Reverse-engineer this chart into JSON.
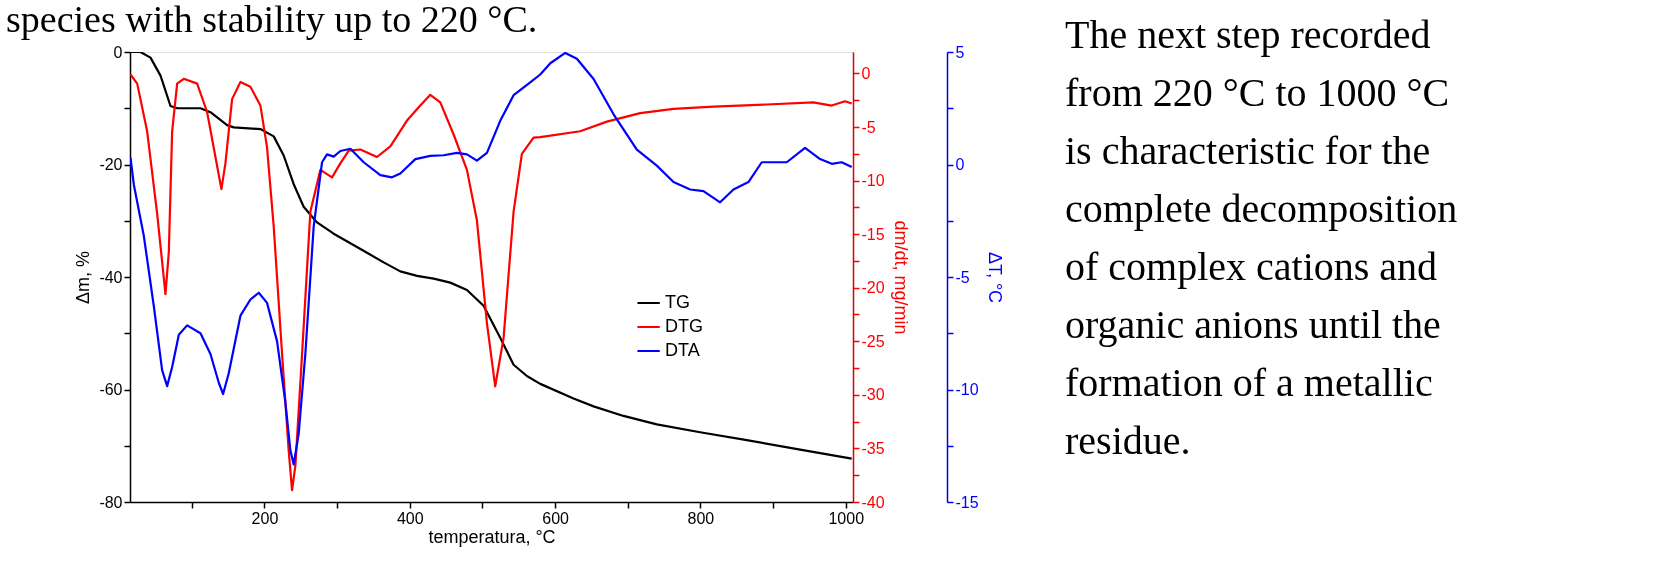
{
  "chart_data": {
    "type": "line",
    "xlabel": "temperatura, °C",
    "ylabel": "Δm, %",
    "y2label": "dm/dt, mg/min",
    "y3label": "ΔT, °C",
    "xlim": [
      15,
      1010
    ],
    "xticks": [
      {
        "value": 100,
        "label": null
      },
      200,
      {
        "value": 300,
        "label": null
      },
      400,
      {
        "value": 500,
        "label": null
      },
      600,
      {
        "value": 700,
        "label": null
      },
      800,
      {
        "value": 900,
        "label": null
      },
      1000
    ],
    "ylim": [
      -80,
      0
    ],
    "yticks": [
      -80,
      {
        "value": -70,
        "label": null
      },
      -60,
      {
        "value": -50,
        "label": null
      },
      -40,
      {
        "value": -30,
        "label": null
      },
      -20,
      {
        "value": -10,
        "label": null
      },
      0
    ],
    "y2lim": [
      -40,
      2
    ],
    "y2ticks": [
      -40,
      {
        "value": -37.5,
        "label": null
      },
      -35,
      {
        "value": -32.5,
        "label": null
      },
      -30,
      {
        "value": -27.5,
        "label": null
      },
      -25,
      {
        "value": -22.5,
        "label": null
      },
      -20,
      {
        "value": -17.5,
        "label": null
      },
      -15,
      {
        "value": -12.5,
        "label": null
      },
      -10,
      {
        "value": -7.5,
        "label": null
      },
      -5,
      {
        "value": -2.5,
        "label": null
      },
      0
    ],
    "y3lim": [
      -15,
      5
    ],
    "y3ticks": [
      -15,
      {
        "value": -12.5,
        "label": null
      },
      -10,
      {
        "value": -7.5,
        "label": null
      },
      -5,
      {
        "value": -2.5,
        "label": null
      },
      0,
      {
        "value": 2.5,
        "label": null
      },
      5
    ],
    "legend": "center right",
    "annotations": [
      "species with stability up to 220 °C.",
      "The next step recorded\nfrom 220 °C to 1000 °C\nis characteristic for the\ncomplete decomposition\nof complex cations and\norganic anions until the\nformation of a metallic\nresidue."
    ],
    "series": [
      {
        "name": "TG",
        "color": "#000000",
        "axis": "y",
        "x": [
          15.7,
          29.4,
          43.2,
          57,
          70.7,
          79.9,
          112,
          125.7,
          148.6,
          157.8,
          194.5,
          212.8,
          226.5,
          240.3,
          254,
          272.4,
          295.3,
          318.3,
          341.2,
          364.1,
          387,
          410,
          432.9,
          455.8,
          478.7,
          501.6,
          524.5,
          542.9,
          561.2,
          579.6,
          625.4,
          653,
          694.2,
          740,
          799.6,
          863.8,
          937.2,
          1008.2
        ],
        "values": [
          0,
          0,
          -1.0,
          -4.2,
          -9.6,
          -10.0,
          -10.0,
          -10.7,
          -13.0,
          -13.4,
          -13.7,
          -15.0,
          -18.4,
          -23.5,
          -27.5,
          -30.3,
          -32.3,
          -34.0,
          -35.7,
          -37.4,
          -39.0,
          -39.8,
          -40.3,
          -41.0,
          -42.3,
          -45.1,
          -50.8,
          -55.6,
          -57.6,
          -59.0,
          -61.6,
          -63.0,
          -64.7,
          -66.2,
          -67.6,
          -69.0,
          -70.7,
          -72.3
        ]
      },
      {
        "name": "DTG",
        "color": "#ff0000",
        "axis": "y2",
        "x": [
          15.7,
          24.9,
          38.6,
          52.4,
          63.8,
          68.4,
          73,
          79.9,
          89,
          107.4,
          121.1,
          132.6,
          140.8,
          146.3,
          155.5,
          167,
          180.7,
          194.5,
          203.6,
          212.8,
          224.3,
          233.4,
          238,
          242.6,
          251.8,
          263.2,
          277,
          293,
          304.5,
          316,
          332,
          354.9,
          373.3,
          396.2,
          414.5,
          428.3,
          442,
          460.4,
          478.7,
          492.4,
          506.2,
          517.6,
          529.1,
          542.9,
          554.3,
          570.4,
          579.6,
          634.6,
          671.3,
          717.1,
          763,
          818,
          891.3,
          955.5,
          980.7,
          999,
          1008.2
        ],
        "values": [
          -0.1,
          -0.95,
          -5.4,
          -13.1,
          -20.6,
          -16.7,
          -5.4,
          -0.95,
          -0.5,
          -0.95,
          -3.6,
          -7.8,
          -10.8,
          -8.4,
          -2.4,
          -0.8,
          -1.25,
          -3.0,
          -6.9,
          -14.3,
          -26.2,
          -35.2,
          -38.9,
          -36.6,
          -26.2,
          -12.9,
          -9.0,
          -9.7,
          -8.4,
          -7.2,
          -7.1,
          -7.8,
          -6.8,
          -4.4,
          -3.0,
          -2.0,
          -2.7,
          -5.7,
          -9.0,
          -13.7,
          -23.3,
          -29.2,
          -24.7,
          -12.9,
          -7.5,
          -6.0,
          -5.95,
          -5.4,
          -4.5,
          -3.7,
          -3.3,
          -3.1,
          -2.9,
          -2.7,
          -3.0,
          -2.6,
          -2.8
        ]
      },
      {
        "name": "DTA",
        "color": "#0000ff",
        "axis": "y3",
        "x": [
          15.7,
          20.3,
          34,
          47.8,
          59.2,
          66.1,
          73,
          82.2,
          93.6,
          112,
          125.7,
          137.2,
          143.1,
          150.9,
          167,
          180.7,
          192.2,
          203.6,
          217.4,
          228.8,
          235.7,
          240.3,
          247.1,
          256.3,
          267.8,
          279.3,
          286.1,
          295.3,
          304.5,
          318.3,
          336.6,
          359.5,
          375.6,
          387,
          407.7,
          428.3,
          446.6,
          465,
          478.7,
          492.4,
          506.2,
          524.5,
          542.9,
          565.8,
          579.6,
          593.4,
          614,
          630,
          653,
          680.5,
          712.5,
          740,
          763,
          785.9,
          804.2,
          827.1,
          845.5,
          866.1,
          884.4,
          918.8,
          944,
          964.7,
          980.7,
          994.5,
          1008.2
        ],
        "values": [
          0.31,
          -0.9,
          -3.17,
          -6.3,
          -9.14,
          -9.85,
          -9.0,
          -7.57,
          -7.15,
          -7.5,
          -8.42,
          -9.7,
          -10.2,
          -9.28,
          -6.72,
          -6.0,
          -5.7,
          -6.15,
          -7.86,
          -10.56,
          -12.7,
          -13.33,
          -11.98,
          -8.43,
          -2.75,
          0.1,
          0.45,
          0.35,
          0.6,
          0.7,
          0.1,
          -0.47,
          -0.57,
          -0.4,
          0.24,
          0.38,
          0.41,
          0.52,
          0.45,
          0.17,
          0.52,
          1.94,
          3.08,
          3.65,
          4.0,
          4.5,
          4.96,
          4.7,
          3.8,
          2.23,
          0.66,
          -0.05,
          -0.78,
          -1.11,
          -1.18,
          -1.68,
          -1.11,
          -0.78,
          0.1,
          0.1,
          0.74,
          0.24,
          0.03,
          0.1,
          -0.11
        ]
      }
    ]
  }
}
